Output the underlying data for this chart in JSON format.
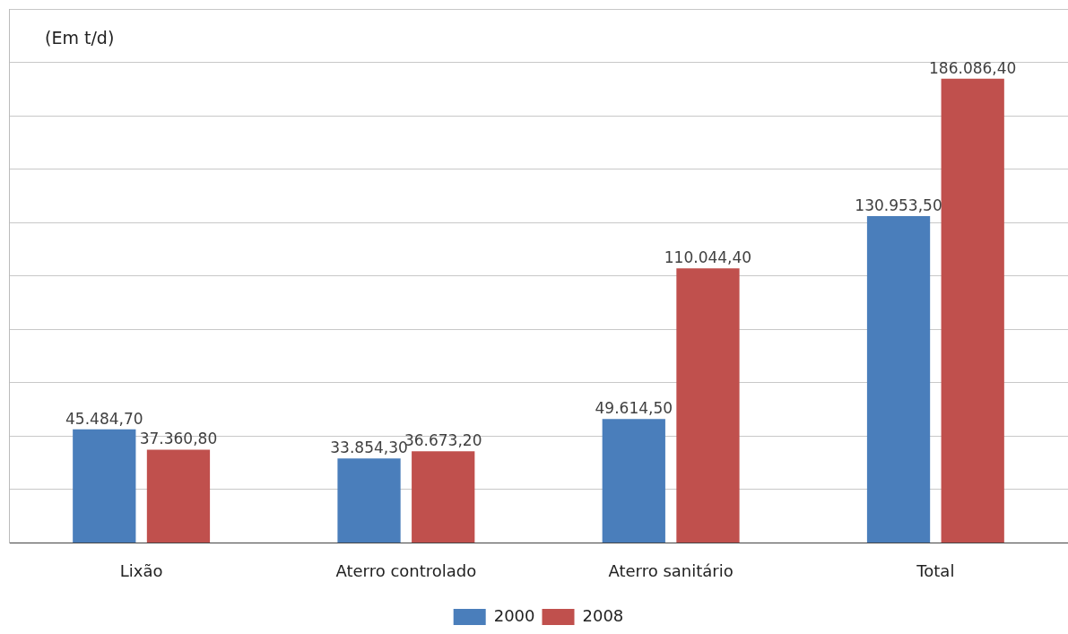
{
  "chart_data": {
    "type": "bar",
    "ylabel": "(Em t/d)",
    "categories": [
      "Lixão",
      "Aterro controlado",
      "Aterro sanitário",
      "Total"
    ],
    "series": [
      {
        "name": "2000",
        "color": "#4a7ebb",
        "values": [
          45484.7,
          33854.3,
          49614.5,
          130953.5
        ],
        "value_labels": [
          "45.484,70",
          "33.854,30",
          "49.614,50",
          "130.953,50"
        ]
      },
      {
        "name": "2008",
        "color": "#c0504d",
        "values": [
          37360.8,
          36673.2,
          110044.4,
          186086.4
        ],
        "value_labels": [
          "37.360,80",
          "36.673,20",
          "110.044,40",
          "186.086,40"
        ]
      }
    ],
    "ylim": [
      0,
      214000
    ],
    "yticks": [
      {
        "value": 0,
        "label": null
      },
      {
        "value": 21400,
        "label": null
      },
      {
        "value": 42800,
        "label": null
      },
      {
        "value": 64200,
        "label": null
      },
      {
        "value": 85600,
        "label": null
      },
      {
        "value": 107000,
        "label": null
      },
      {
        "value": 128400,
        "label": null
      },
      {
        "value": 149800,
        "label": null
      },
      {
        "value": 171200,
        "label": null
      },
      {
        "value": 192600,
        "label": null
      },
      {
        "value": 214000,
        "label": null
      }
    ],
    "grid": "y",
    "legend": "bottom"
  }
}
